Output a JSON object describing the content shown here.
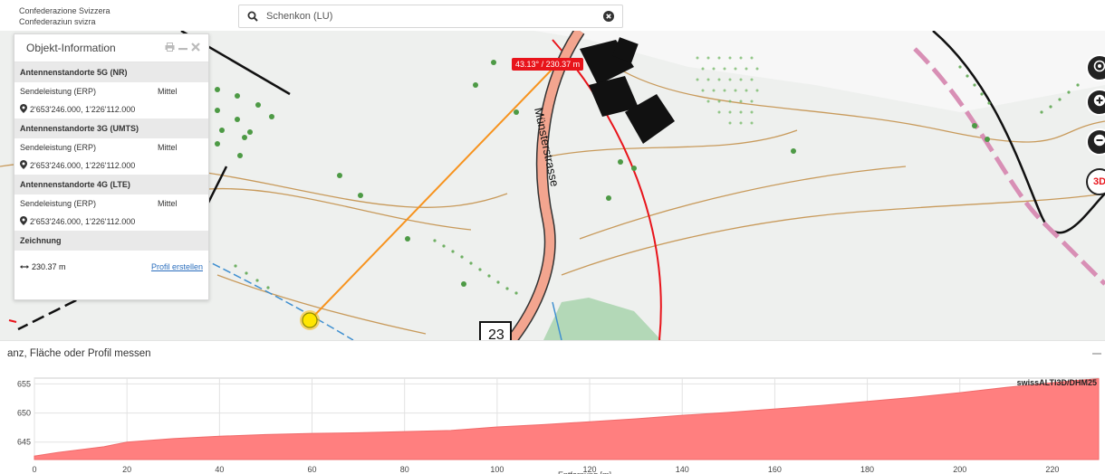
{
  "brand": {
    "line1": "Confederazione Svizzera",
    "line2": "Confederaziun svizra"
  },
  "search": {
    "value": "Schenkon (LU)",
    "placeholder": "",
    "search_icon": "search-icon",
    "clear_icon": "clear-icon"
  },
  "map": {
    "measure_label": "43.13° / 230.37 m",
    "street_name": "Münsterstrasse",
    "road_number": "23",
    "controls": [
      "locate",
      "zoom-in",
      "zoom-out",
      "3D"
    ],
    "control_3d_label": "3D"
  },
  "panel": {
    "title": "Objekt-Information",
    "sections": [
      {
        "title": "Antennenstandorte 5G (NR)",
        "label": "Sendeleistung (ERP)",
        "value": "Mittel",
        "coords": "2'653'246.000, 1'226'112.000"
      },
      {
        "title": "Antennenstandorte 3G (UMTS)",
        "label": "Sendeleistung (ERP)",
        "value": "Mittel",
        "coords": "2'653'246.000, 1'226'112.000"
      },
      {
        "title": "Antennenstandorte 4G (LTE)",
        "label": "Sendeleistung (ERP)",
        "value": "Mittel",
        "coords": "2'653'246.000, 1'226'112.000"
      }
    ],
    "drawing_title": "Zeichnung",
    "distance": "230.37 m",
    "profile_link": "Profil erstellen"
  },
  "measure_bar": {
    "title": "anz, Fläche oder Profil messen"
  },
  "chart_data": {
    "type": "area",
    "source_label": "swissALTI3D/DHM25",
    "xlabel": "Entfernung [m]",
    "ylabel": "",
    "xlim": [
      0,
      230
    ],
    "ylim": [
      642,
      656
    ],
    "x_ticks": [
      0,
      20,
      40,
      60,
      80,
      100,
      120,
      140,
      160,
      180,
      200,
      220
    ],
    "y_ticks": [
      645,
      650,
      655
    ],
    "series": [
      {
        "x": [
          0,
          5,
          15,
          20,
          30,
          40,
          50,
          60,
          70,
          80,
          90,
          100,
          110,
          120,
          130,
          140,
          150,
          160,
          170,
          180,
          190,
          200,
          210,
          215,
          220,
          225,
          230
        ],
        "values": [
          642.6,
          643.2,
          644.2,
          645.0,
          645.6,
          646.0,
          646.3,
          646.5,
          646.6,
          646.8,
          647.0,
          647.6,
          648.0,
          648.5,
          649.0,
          649.6,
          650.1,
          650.7,
          651.3,
          652.0,
          652.7,
          653.5,
          654.4,
          654.8,
          655.2,
          655.6,
          655.9
        ]
      }
    ],
    "fill_color": "#ff7f7f",
    "grid": true
  }
}
